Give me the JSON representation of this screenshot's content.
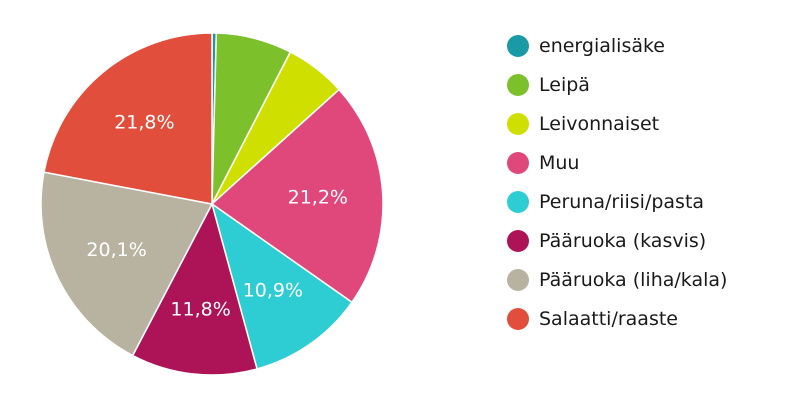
{
  "chart_data": {
    "type": "pie",
    "title": "",
    "legend_position": "right",
    "slices": [
      {
        "name": "energialisäke",
        "value": 0.4,
        "label": "",
        "color": "#1a9aa5"
      },
      {
        "name": "Leipä",
        "value": 7.1,
        "label": "",
        "color": "#7cc12b"
      },
      {
        "name": "Leivonnaiset",
        "value": 5.7,
        "label": "",
        "color": "#cfe000"
      },
      {
        "name": "Muu",
        "value": 21.2,
        "label": "21,2%",
        "color": "#e0477a"
      },
      {
        "name": "Peruna/riisi/pasta",
        "value": 10.9,
        "label": "10,9%",
        "color": "#2ecdd4"
      },
      {
        "name": "Pääruoka (kasvis)",
        "value": 11.8,
        "label": "11,8%",
        "color": "#ad1457"
      },
      {
        "name": "Pääruoka (liha/kala)",
        "value": 20.1,
        "label": "20,1%",
        "color": "#b8b3a1"
      },
      {
        "name": "Salaatti/raaste",
        "value": 21.8,
        "label": "21,8%",
        "color": "#e14e3c"
      }
    ]
  }
}
